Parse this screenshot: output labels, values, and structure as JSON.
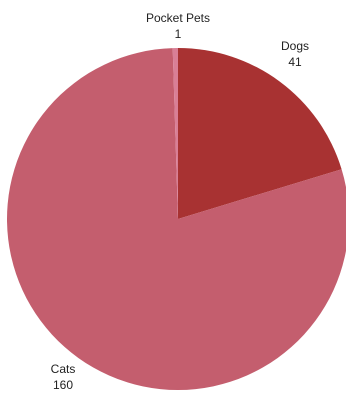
{
  "chart_data": {
    "type": "pie",
    "title": "",
    "start": "top",
    "direction": "clockwise",
    "slices": [
      {
        "label": "Dogs",
        "value": 41,
        "color": "#a83232"
      },
      {
        "label": "Cats",
        "value": 160,
        "color": "#c45e6e"
      },
      {
        "label": "Pocket Pets",
        "value": 1,
        "color": "#d97f96"
      }
    ]
  }
}
